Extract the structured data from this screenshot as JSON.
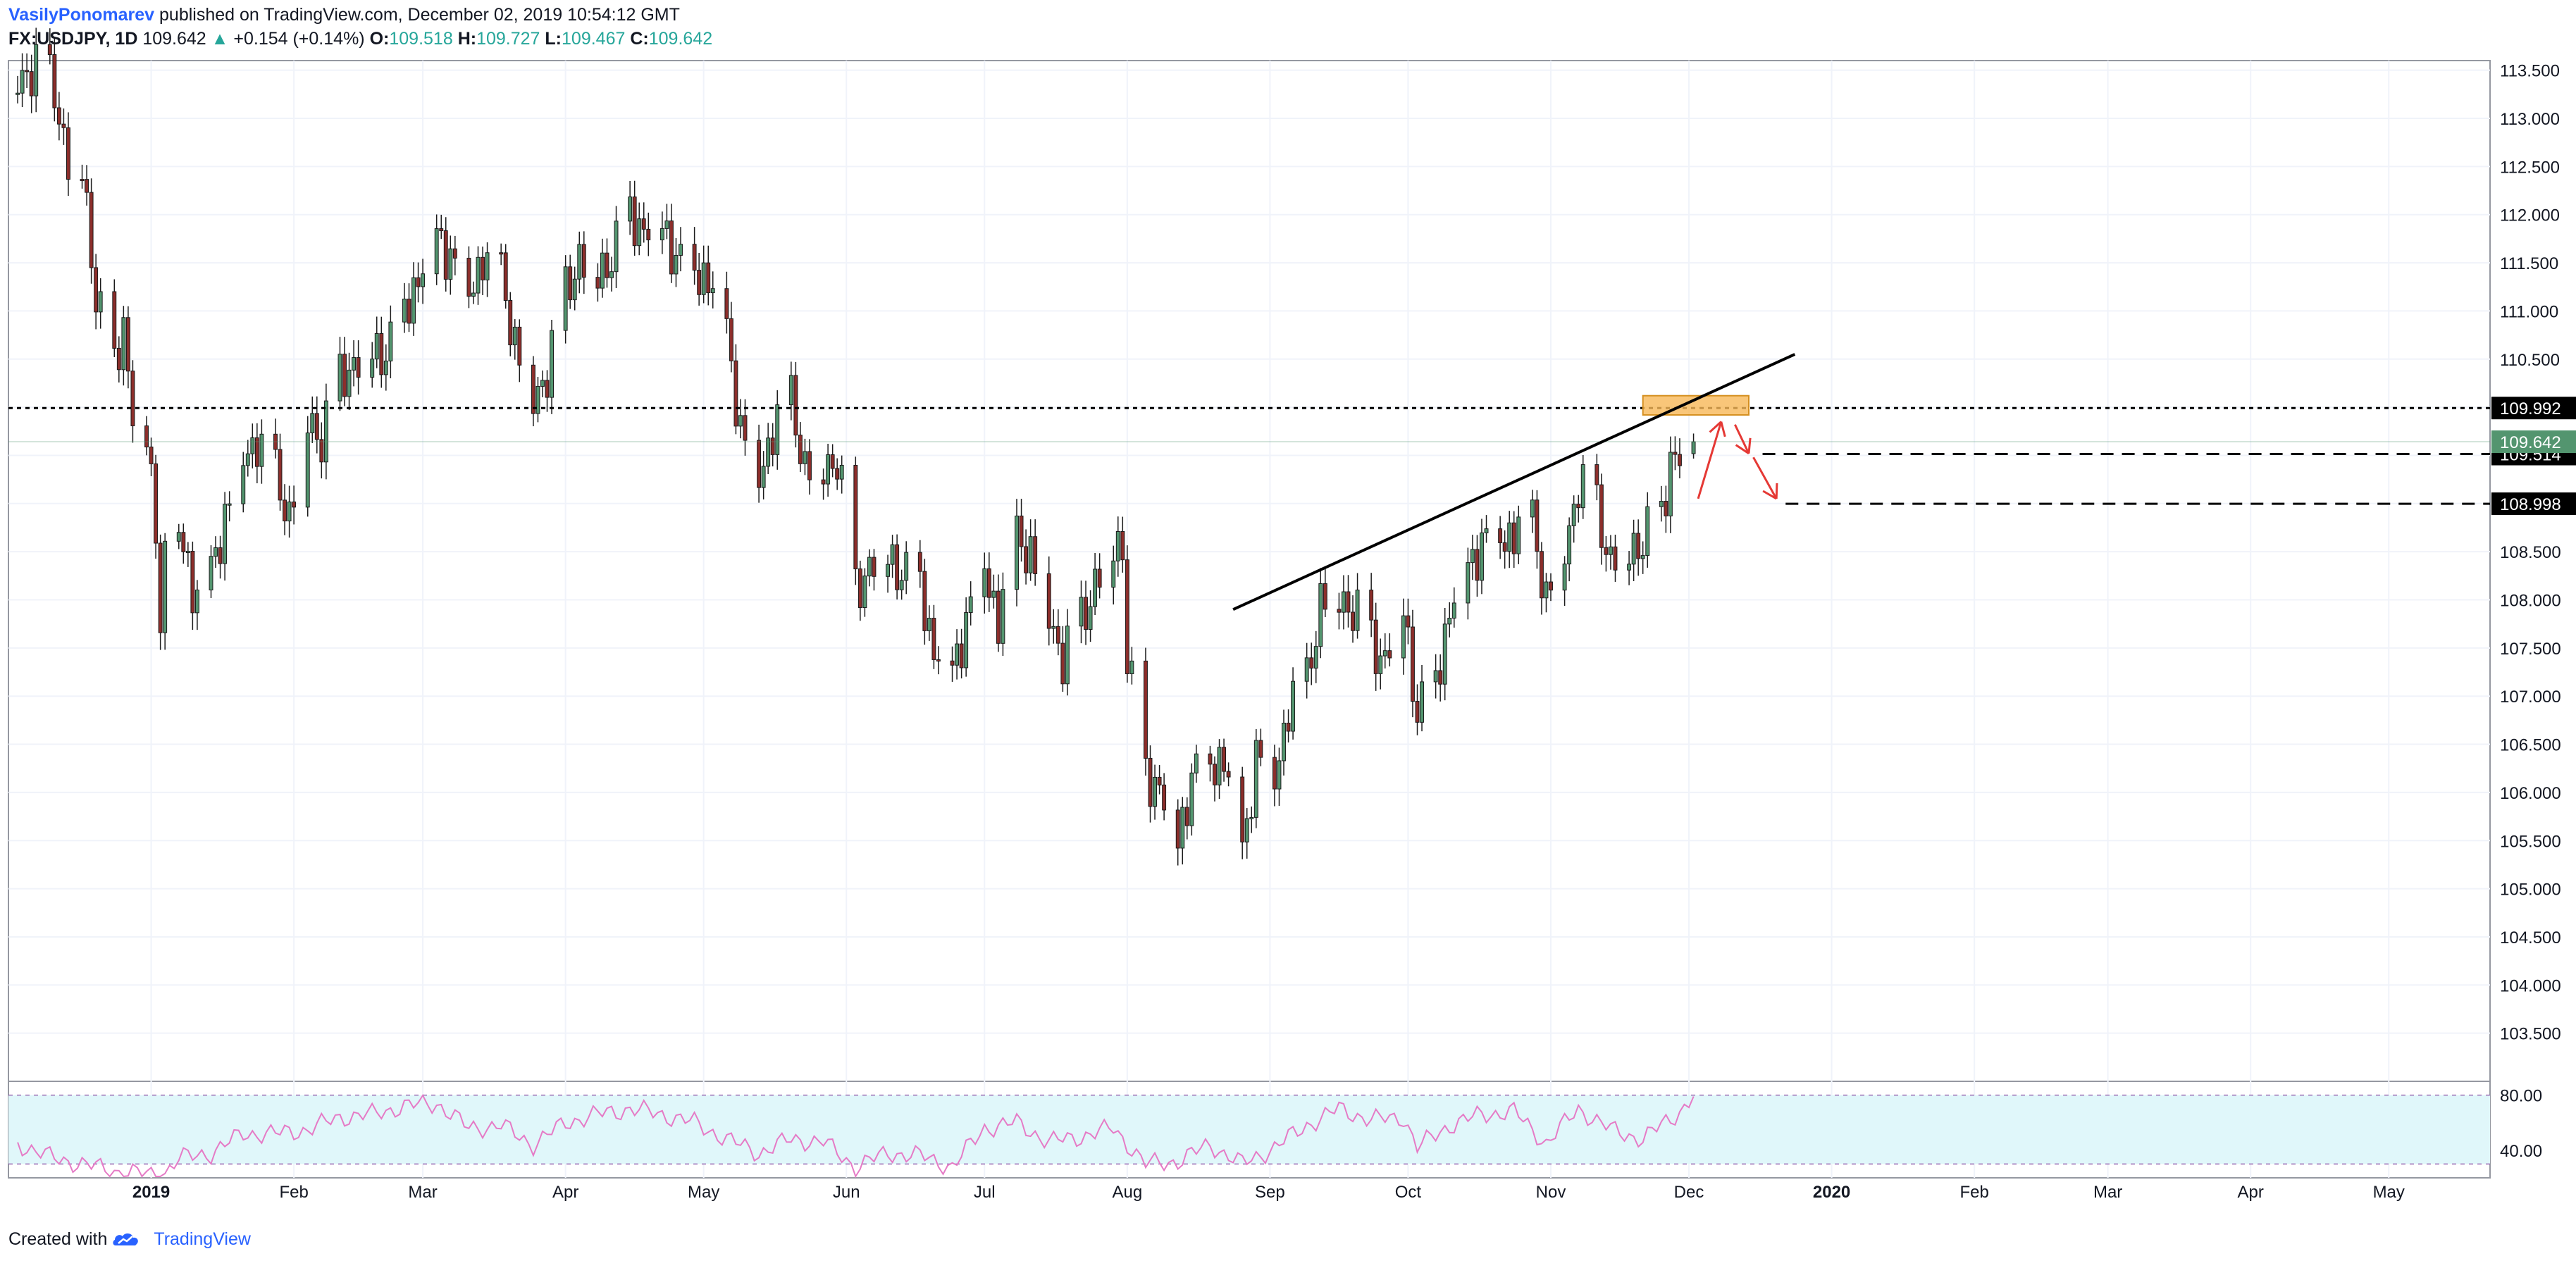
{
  "header": {
    "author": "VasilyPonomarev",
    "published": "published on TradingView.com, December 02, 2019 10:54:12 GMT",
    "symbol": "FX:USDJPY, 1D",
    "last": "109.642",
    "arrow": "▲",
    "change": "+0.154 (+0.14%)",
    "o_label": "O:",
    "o_value": "109.518",
    "h_label": "H:",
    "h_value": "109.727",
    "l_label": "L:",
    "l_value": "109.467",
    "c_label": "C:",
    "c_value": "109.642"
  },
  "footer": {
    "created_with": "Created with",
    "brand": "TradingView"
  },
  "colors": {
    "up": "#53956f",
    "down": "#8c2e2b",
    "rsi_line": "#e57bc6",
    "rsi_band": "#e0f7fa",
    "zone": "#f7b858",
    "arrow": "#e53935",
    "accent": "#2962ff"
  },
  "chart_data": {
    "type": "candlestick",
    "symbol": "FX:USDJPY",
    "interval": "1D",
    "ylim": [
      103.0,
      113.6
    ],
    "price_ticks": [
      "113.500",
      "113.000",
      "112.500",
      "112.000",
      "111.500",
      "111.000",
      "110.500",
      "110.000",
      "109.500",
      "109.000",
      "108.500",
      "108.000",
      "107.500",
      "107.000",
      "106.500",
      "106.000",
      "105.500",
      "105.000",
      "104.500",
      "104.000",
      "103.500"
    ],
    "time_ticks": [
      {
        "label": "2019",
        "date": "2019-01-01",
        "bold": true
      },
      {
        "label": "Feb",
        "date": "2019-02-01"
      },
      {
        "label": "Mar",
        "date": "2019-03-01"
      },
      {
        "label": "Apr",
        "date": "2019-04-01"
      },
      {
        "label": "May",
        "date": "2019-05-01"
      },
      {
        "label": "Jun",
        "date": "2019-06-01"
      },
      {
        "label": "Jul",
        "date": "2019-07-01"
      },
      {
        "label": "Aug",
        "date": "2019-08-01"
      },
      {
        "label": "Sep",
        "date": "2019-09-01"
      },
      {
        "label": "Oct",
        "date": "2019-10-01"
      },
      {
        "label": "Nov",
        "date": "2019-11-01"
      },
      {
        "label": "Dec",
        "date": "2019-12-01"
      },
      {
        "label": "2020",
        "date": "2020-01-01",
        "bold": true
      },
      {
        "label": "Feb",
        "date": "2020-02-01"
      },
      {
        "label": "Mar",
        "date": "2020-03-01"
      },
      {
        "label": "Apr",
        "date": "2020-04-01"
      },
      {
        "label": "May",
        "date": "2020-05-01"
      }
    ],
    "x_range": [
      "2018-12-01",
      "2020-05-23"
    ],
    "close_path": [
      [
        "2018-12-03",
        113.4
      ],
      [
        "2018-12-07",
        113.6
      ],
      [
        "2018-12-11",
        113.3
      ],
      [
        "2018-12-14",
        112.6
      ],
      [
        "2018-12-17",
        112.5
      ],
      [
        "2018-12-20",
        111.2
      ],
      [
        "2018-12-24",
        110.4
      ],
      [
        "2018-12-26",
        110.9
      ],
      [
        "2018-12-28",
        110.0
      ],
      [
        "2018-12-31",
        109.6
      ],
      [
        "2019-01-02",
        108.9
      ],
      [
        "2019-01-03",
        107.7
      ],
      [
        "2019-01-04",
        108.5
      ],
      [
        "2019-01-08",
        108.7
      ],
      [
        "2019-01-10",
        108.1
      ],
      [
        "2019-01-14",
        108.3
      ],
      [
        "2019-01-17",
        108.9
      ],
      [
        "2019-01-21",
        109.5
      ],
      [
        "2019-01-24",
        109.7
      ],
      [
        "2019-01-28",
        109.3
      ],
      [
        "2019-01-31",
        108.9
      ],
      [
        "2019-02-04",
        109.9
      ],
      [
        "2019-02-07",
        109.7
      ],
      [
        "2019-02-11",
        110.3
      ],
      [
        "2019-02-14",
        110.5
      ],
      [
        "2019-02-18",
        110.6
      ],
      [
        "2019-02-21",
        110.6
      ],
      [
        "2019-02-25",
        111.0
      ],
      [
        "2019-02-28",
        111.4
      ],
      [
        "2019-03-04",
        111.8
      ],
      [
        "2019-03-07",
        111.6
      ],
      [
        "2019-03-11",
        111.2
      ],
      [
        "2019-03-14",
        111.6
      ],
      [
        "2019-03-18",
        111.4
      ],
      [
        "2019-03-21",
        110.7
      ],
      [
        "2019-03-25",
        110.1
      ],
      [
        "2019-03-28",
        110.4
      ],
      [
        "2019-04-01",
        111.2
      ],
      [
        "2019-04-04",
        111.6
      ],
      [
        "2019-04-08",
        111.4
      ],
      [
        "2019-04-11",
        111.6
      ],
      [
        "2019-04-15",
        112.0
      ],
      [
        "2019-04-18",
        111.9
      ],
      [
        "2019-04-22",
        111.9
      ],
      [
        "2019-04-25",
        111.6
      ],
      [
        "2019-04-29",
        111.4
      ],
      [
        "2019-05-02",
        111.4
      ],
      [
        "2019-05-06",
        110.8
      ],
      [
        "2019-05-09",
        109.8
      ],
      [
        "2019-05-13",
        109.3
      ],
      [
        "2019-05-16",
        109.8
      ],
      [
        "2019-05-20",
        110.1
      ],
      [
        "2019-05-23",
        109.4
      ],
      [
        "2019-05-27",
        109.4
      ],
      [
        "2019-05-30",
        109.5
      ],
      [
        "2019-06-03",
        108.1
      ],
      [
        "2019-06-06",
        108.4
      ],
      [
        "2019-06-10",
        108.5
      ],
      [
        "2019-06-13",
        108.3
      ],
      [
        "2019-06-17",
        108.2
      ],
      [
        "2019-06-20",
        107.5
      ],
      [
        "2019-06-24",
        107.3
      ],
      [
        "2019-06-27",
        107.8
      ],
      [
        "2019-07-01",
        108.4
      ],
      [
        "2019-07-04",
        107.8
      ],
      [
        "2019-07-08",
        108.7
      ],
      [
        "2019-07-11",
        108.5
      ],
      [
        "2019-07-15",
        107.9
      ],
      [
        "2019-07-18",
        107.4
      ],
      [
        "2019-07-22",
        107.8
      ],
      [
        "2019-07-25",
        108.2
      ],
      [
        "2019-07-29",
        108.6
      ],
      [
        "2019-07-31",
        108.6
      ],
      [
        "2019-08-01",
        107.4
      ],
      [
        "2019-08-05",
        106.2
      ],
      [
        "2019-08-08",
        106.1
      ],
      [
        "2019-08-12",
        105.5
      ],
      [
        "2019-08-15",
        106.2
      ],
      [
        "2019-08-19",
        106.3
      ],
      [
        "2019-08-22",
        106.4
      ],
      [
        "2019-08-26",
        105.4
      ],
      [
        "2019-08-29",
        106.4
      ],
      [
        "2019-09-02",
        106.2
      ],
      [
        "2019-09-05",
        106.9
      ],
      [
        "2019-09-09",
        107.2
      ],
      [
        "2019-09-12",
        108.0
      ],
      [
        "2019-09-16",
        108.1
      ],
      [
        "2019-09-19",
        107.9
      ],
      [
        "2019-09-23",
        107.6
      ],
      [
        "2019-09-26",
        107.4
      ],
      [
        "2019-09-30",
        108.0
      ],
      [
        "2019-10-03",
        106.8
      ],
      [
        "2019-10-07",
        107.2
      ],
      [
        "2019-10-10",
        107.9
      ],
      [
        "2019-10-14",
        108.4
      ],
      [
        "2019-10-17",
        108.6
      ],
      [
        "2019-10-21",
        108.7
      ],
      [
        "2019-10-24",
        108.7
      ],
      [
        "2019-10-28",
        108.9
      ],
      [
        "2019-10-31",
        108.0
      ],
      [
        "2019-11-04",
        108.6
      ],
      [
        "2019-11-07",
        109.2
      ],
      [
        "2019-11-11",
        109.0
      ],
      [
        "2019-11-14",
        108.4
      ],
      [
        "2019-11-18",
        108.6
      ],
      [
        "2019-11-21",
        108.6
      ],
      [
        "2019-11-25",
        108.9
      ],
      [
        "2019-11-27",
        109.5
      ],
      [
        "2019-11-29",
        109.5
      ],
      [
        "2019-12-02",
        109.64
      ]
    ],
    "last_candle": {
      "date": "2019-12-02",
      "open": 109.518,
      "high": 109.727,
      "low": 109.467,
      "close": 109.642
    },
    "horizontal_lines": [
      {
        "price": 109.992,
        "label": "109.992",
        "style": "dotted"
      },
      {
        "price": 109.514,
        "label": "109.514",
        "style": "dashed",
        "from": "2019-12-17"
      },
      {
        "price": 108.998,
        "label": "108.998",
        "style": "dashed",
        "from": "2019-12-22"
      }
    ],
    "current_price": {
      "price": 109.642,
      "label": "109.642"
    },
    "trendline": {
      "from": [
        "2019-08-24",
        107.9
      ],
      "to": [
        "2019-12-24",
        110.55
      ]
    },
    "zone": {
      "from": "2019-11-21",
      "to": "2019-12-14",
      "low": 109.92,
      "high": 110.12
    },
    "arrows": [
      {
        "from": [
          "2019-12-03",
          109.05
        ],
        "to": [
          "2019-12-08",
          109.85
        ]
      },
      {
        "from": [
          "2019-12-11",
          109.82
        ],
        "to": [
          "2019-12-14",
          109.52
        ]
      },
      {
        "from": [
          "2019-12-15",
          109.48
        ],
        "to": [
          "2019-12-20",
          109.05
        ]
      }
    ],
    "rsi": {
      "ylim": [
        20,
        90
      ],
      "ticks": [
        "80.00",
        "40.00"
      ],
      "levels": [
        80,
        30
      ],
      "path": [
        [
          "2018-12-03",
          45
        ],
        [
          "2018-12-10",
          35
        ],
        [
          "2018-12-17",
          30
        ],
        [
          "2018-12-24",
          25
        ],
        [
          "2019-01-02",
          22
        ],
        [
          "2019-01-03",
          20
        ],
        [
          "2019-01-07",
          34
        ],
        [
          "2019-01-14",
          38
        ],
        [
          "2019-01-21",
          52
        ],
        [
          "2019-01-28",
          52
        ],
        [
          "2019-02-04",
          55
        ],
        [
          "2019-02-11",
          64
        ],
        [
          "2019-02-18",
          66
        ],
        [
          "2019-02-25",
          72
        ],
        [
          "2019-03-04",
          74
        ],
        [
          "2019-03-11",
          56
        ],
        [
          "2019-03-18",
          58
        ],
        [
          "2019-03-25",
          44
        ],
        [
          "2019-04-01",
          60
        ],
        [
          "2019-04-08",
          66
        ],
        [
          "2019-04-15",
          70
        ],
        [
          "2019-04-22",
          66
        ],
        [
          "2019-04-29",
          60
        ],
        [
          "2019-05-06",
          48
        ],
        [
          "2019-05-13",
          38
        ],
        [
          "2019-05-20",
          48
        ],
        [
          "2019-05-27",
          46
        ],
        [
          "2019-06-03",
          28
        ],
        [
          "2019-06-10",
          38
        ],
        [
          "2019-06-17",
          36
        ],
        [
          "2019-06-24",
          28
        ],
        [
          "2019-07-01",
          56
        ],
        [
          "2019-07-08",
          60
        ],
        [
          "2019-07-15",
          46
        ],
        [
          "2019-07-22",
          50
        ],
        [
          "2019-07-29",
          56
        ],
        [
          "2019-08-05",
          30
        ],
        [
          "2019-08-12",
          32
        ],
        [
          "2019-08-19",
          44
        ],
        [
          "2019-08-26",
          30
        ],
        [
          "2019-09-02",
          42
        ],
        [
          "2019-09-09",
          58
        ],
        [
          "2019-09-16",
          70
        ],
        [
          "2019-09-23",
          62
        ],
        [
          "2019-09-30",
          64
        ],
        [
          "2019-10-03",
          42
        ],
        [
          "2019-10-10",
          58
        ],
        [
          "2019-10-17",
          66
        ],
        [
          "2019-10-24",
          68
        ],
        [
          "2019-10-31",
          45
        ],
        [
          "2019-11-07",
          70
        ],
        [
          "2019-11-14",
          55
        ],
        [
          "2019-11-21",
          48
        ],
        [
          "2019-11-25",
          58
        ],
        [
          "2019-11-29",
          68
        ],
        [
          "2019-12-02",
          79
        ]
      ]
    }
  }
}
